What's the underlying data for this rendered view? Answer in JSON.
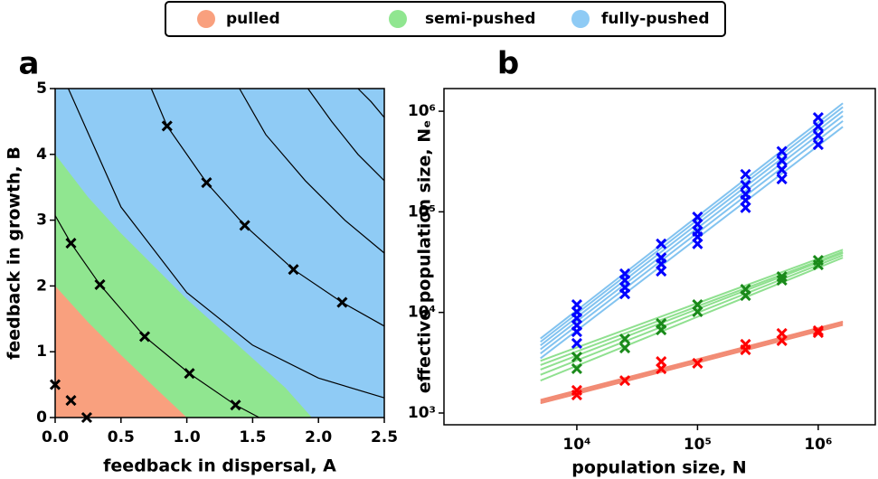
{
  "chart_data": [
    {
      "type": "phase",
      "panel_label": "a",
      "xlabel": "feedback in dispersal, A",
      "ylabel": "feedback in growth, B",
      "xlim": [
        0,
        2.5
      ],
      "ylim": [
        0,
        5
      ],
      "xticks": [
        {
          "value": 0,
          "label": "0.0"
        },
        0.5,
        {
          "value": 1,
          "label": "1.0"
        },
        1.5,
        {
          "value": 2,
          "label": "2.0"
        },
        2.5
      ],
      "yticks": [
        0,
        1,
        2,
        3,
        4,
        5
      ],
      "regions": [
        {
          "name": "fully-pushed",
          "color": "#8fcbf5"
        },
        {
          "name": "semi-pushed",
          "color": "#90e690",
          "x": [
            0,
            0.25,
            0.5,
            0.75,
            1.0,
            1.25,
            1.5,
            1.75,
            1.95
          ],
          "y": [
            4,
            3.35,
            2.8,
            2.3,
            1.8,
            1.35,
            0.9,
            0.45,
            0
          ]
        },
        {
          "name": "pulled",
          "color": "#f9a07e",
          "x": [
            0,
            0.25,
            0.5,
            0.75,
            1.0
          ],
          "y": [
            2,
            1.45,
            0.95,
            0.47,
            0
          ]
        }
      ],
      "contour_color": "#000000",
      "contours": [
        {
          "x": [
            0.1,
            0.5,
            1.0,
            1.5,
            2.0,
            2.5
          ],
          "y": [
            5,
            3.2,
            1.9,
            1.1,
            0.6,
            0.3
          ]
        },
        {
          "x": [
            0,
            0.12,
            0.34,
            0.68,
            1.02,
            1.37,
            1.55
          ],
          "y": [
            3.07,
            2.65,
            2.02,
            1.23,
            0.67,
            0.19,
            0
          ]
        },
        {
          "x": [
            0.73,
            0.85,
            1.15,
            1.44,
            1.81,
            2.18,
            2.5
          ],
          "y": [
            5,
            4.43,
            3.57,
            2.92,
            2.25,
            1.75,
            1.39
          ]
        },
        {
          "x": [
            1.4,
            1.6,
            1.9,
            2.2,
            2.5
          ],
          "y": [
            5,
            4.3,
            3.6,
            3.0,
            2.5
          ]
        },
        {
          "x": [
            1.92,
            2.1,
            2.3,
            2.5
          ],
          "y": [
            5,
            4.5,
            4.0,
            3.6
          ]
        },
        {
          "x": [
            2.3,
            2.4,
            2.5
          ],
          "y": [
            5,
            4.8,
            4.56
          ]
        }
      ],
      "points": {
        "color": "#000000",
        "x": [
          0,
          0.12,
          0.24,
          0.12,
          0.34,
          0.68,
          1.02,
          1.37,
          0.85,
          1.15,
          1.44,
          1.81,
          2.18
        ],
        "y": [
          0.5,
          0.26,
          0,
          2.65,
          2.02,
          1.23,
          0.67,
          0.19,
          4.43,
          3.57,
          2.92,
          2.25,
          1.75
        ]
      }
    },
    {
      "type": "loglog",
      "panel_label": "b",
      "xlabel": "population size, N",
      "ylabel": "effective population size, Nₑ",
      "xlim": [
        793,
        2970000
      ],
      "ylim": [
        764,
        1680000
      ],
      "xscale": "log",
      "yscale": "log",
      "xticks": [
        {
          "value": 10000,
          "label": "10⁴"
        },
        {
          "value": 100000,
          "label": "10⁵"
        },
        {
          "value": 1000000,
          "label": "10⁶"
        }
      ],
      "yticks": [
        {
          "value": 1000,
          "label": "10³"
        },
        {
          "value": 10000,
          "label": "10⁴"
        },
        {
          "value": 100000,
          "label": "10⁵"
        },
        {
          "value": 1000000,
          "label": "10⁶"
        }
      ],
      "series": [
        {
          "color": "#ff0000",
          "fit_color": "#f28b74",
          "x": [
            10000,
            10000,
            25000,
            50000,
            50000,
            100000,
            250000,
            250000,
            500000,
            500000,
            1000000,
            1000000
          ],
          "values": [
            1679,
            1512,
            2100,
            3250,
            2750,
            3120,
            4820,
            4250,
            6180,
            5240,
            6570,
            6300
          ],
          "fits": [
            {
              "x": [
                5000,
                1600000
              ],
              "values": [
                1250,
                7500
              ]
            },
            {
              "x": [
                5000,
                1600000
              ],
              "values": [
                1300,
                7800
              ]
            },
            {
              "x": [
                5000,
                1600000
              ],
              "values": [
                1350,
                8100
              ]
            }
          ]
        },
        {
          "color": "#1a8a1a",
          "fit_color": "#8fe08f",
          "x": [
            10000,
            10000,
            25000,
            25000,
            50000,
            50000,
            100000,
            100000,
            250000,
            250000,
            500000,
            500000,
            1000000,
            1000000
          ],
          "values": [
            3600,
            2760,
            5450,
            4430,
            7770,
            6700,
            11960,
            10160,
            17000,
            14700,
            22700,
            20900,
            32900,
            29700
          ],
          "fits": [
            {
              "x": [
                5000,
                1600000
              ],
              "values": [
                2100,
                35000
              ]
            },
            {
              "x": [
                5000,
                1600000
              ],
              "values": [
                2400,
                37000
              ]
            },
            {
              "x": [
                5000,
                1600000
              ],
              "values": [
                2700,
                39000
              ]
            },
            {
              "x": [
                5000,
                1600000
              ],
              "values": [
                3000,
                40000
              ]
            },
            {
              "x": [
                5000,
                1600000
              ],
              "values": [
                3300,
                42000
              ]
            }
          ]
        },
        {
          "color": "#0000ff",
          "fit_color": "#82c3f0",
          "x": [
            10000,
            10000,
            10000,
            10000,
            10000,
            10000,
            25000,
            25000,
            25000,
            25000,
            50000,
            50000,
            50000,
            50000,
            100000,
            100000,
            100000,
            100000,
            100000,
            250000,
            250000,
            250000,
            250000,
            250000,
            500000,
            500000,
            500000,
            500000,
            1000000,
            1000000,
            1000000,
            1000000
          ],
          "values": [
            11960,
            10160,
            8760,
            7440,
            6430,
            4920,
            24200,
            20900,
            17700,
            15300,
            48100,
            35000,
            30300,
            25700,
            89000,
            75400,
            64000,
            56400,
            48100,
            236000,
            184000,
            150000,
            130000,
            110000,
            398000,
            323000,
            262000,
            212000,
            866000,
            705000,
            573000,
            465000
          ],
          "fits": [
            {
              "x": [
                5000,
                1600000
              ],
              "values": [
                3500,
                700000
              ]
            },
            {
              "x": [
                5000,
                1600000
              ],
              "values": [
                3900,
                800000
              ]
            },
            {
              "x": [
                5000,
                1600000
              ],
              "values": [
                4300,
                900000
              ]
            },
            {
              "x": [
                5000,
                1600000
              ],
              "values": [
                4700,
                1000000
              ]
            },
            {
              "x": [
                5000,
                1600000
              ],
              "values": [
                5100,
                1100000
              ]
            },
            {
              "x": [
                5000,
                1600000
              ],
              "values": [
                5500,
                1200000
              ]
            }
          ]
        }
      ]
    }
  ]
}
